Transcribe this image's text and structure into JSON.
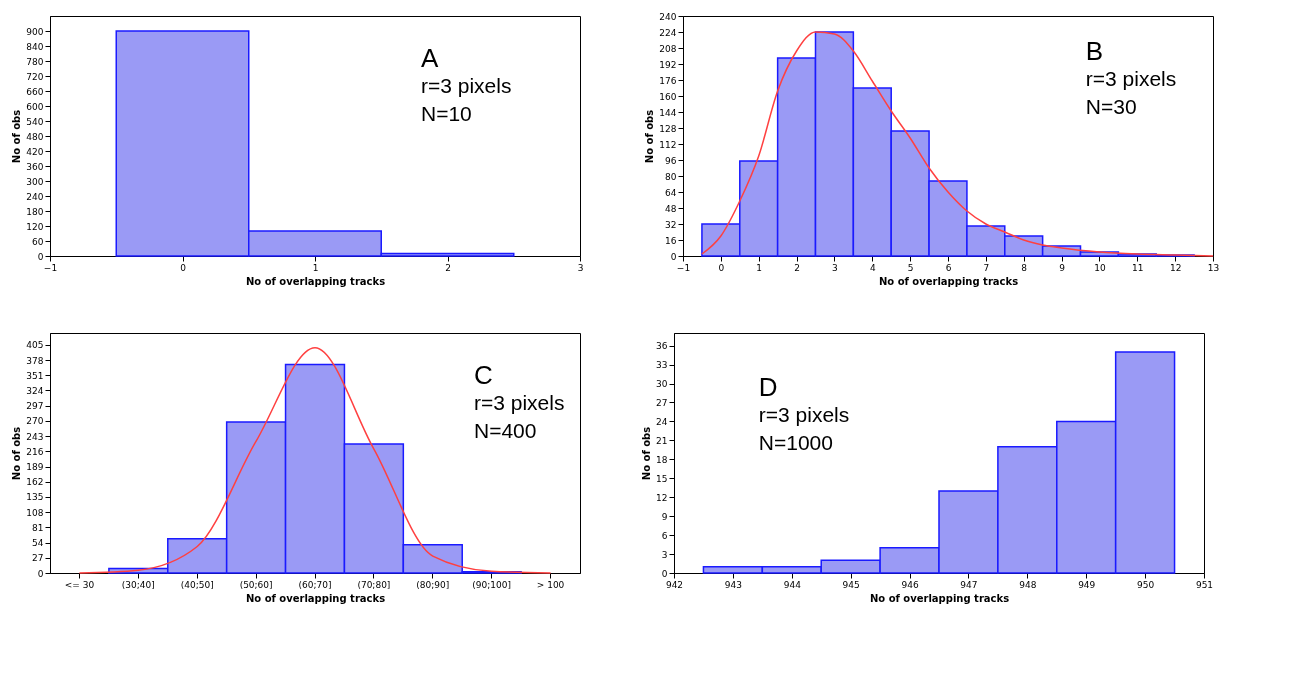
{
  "chart_data": [
    {
      "type": "histogram",
      "xlabel": "No of overlapping tracks",
      "ylabel": "No of obs",
      "bins": [
        -0.5,
        0.5,
        1.5,
        2.5
      ],
      "values": [
        900,
        100,
        10
      ],
      "color": "#9a9af5",
      "xlim": [
        -1,
        3
      ],
      "xticks": [
        -1,
        0,
        1,
        2,
        3
      ],
      "ylim": [
        0,
        960
      ],
      "yticks": [
        0,
        60,
        120,
        180,
        240,
        300,
        360,
        420,
        480,
        540,
        600,
        660,
        720,
        780,
        840,
        900
      ],
      "annotations": [
        "A",
        "r=3 pixels",
        "N=10"
      ]
    },
    {
      "type": "histogram",
      "xlabel": "No of overlapping tracks",
      "ylabel": "No of obs",
      "bins": [
        -0.5,
        0.5,
        1.5,
        2.5,
        3.5,
        4.5,
        5.5,
        6.5,
        7.5,
        8.5,
        9.5,
        10.5,
        11.5,
        12.5
      ],
      "values": [
        32,
        95,
        198,
        224,
        168,
        125,
        75,
        30,
        20,
        10,
        4,
        2,
        1
      ],
      "color": "#9a9af5",
      "xlim": [
        -1,
        13
      ],
      "xticks": [
        -1,
        0,
        1,
        2,
        3,
        4,
        5,
        6,
        7,
        8,
        9,
        10,
        11,
        12,
        13
      ],
      "ylim": [
        0,
        240
      ],
      "yticks": [
        0,
        16,
        32,
        48,
        64,
        80,
        96,
        112,
        128,
        144,
        160,
        176,
        192,
        208,
        224,
        240
      ],
      "annotations": [
        "B",
        "r=3 pixels",
        "N=30"
      ],
      "series": [
        {
          "type": "line",
          "color": "#ff4040",
          "x": [
            -0.5,
            0,
            0.5,
            1,
            1.5,
            2,
            2.5,
            3,
            3.5,
            4,
            4.5,
            5,
            5.5,
            6,
            6.5,
            7,
            7.5,
            8,
            8.5,
            9,
            10,
            11,
            12,
            13
          ],
          "values": [
            2,
            20,
            55,
            100,
            165,
            205,
            224,
            222,
            205,
            175,
            145,
            118,
            88,
            64,
            45,
            32,
            24,
            16,
            11,
            8,
            4,
            2,
            1,
            0
          ]
        }
      ]
    },
    {
      "type": "bar",
      "xlabel": "No of overlapping tracks",
      "ylabel": "No of obs",
      "categories": [
        "<= 30",
        "(30;40]",
        "(40;50]",
        "(50;60]",
        "(60;70]",
        "(70;80]",
        "(80;90]",
        "(90;100]",
        "> 100"
      ],
      "ylim": [
        0,
        426
      ],
      "yticks": [
        0,
        27,
        54,
        81,
        108,
        135,
        162,
        189,
        216,
        243,
        270,
        297,
        324,
        351,
        378,
        405
      ],
      "annotations": [
        "C",
        "r=3 pixels",
        "N=400"
      ],
      "series": [
        {
          "type": "bar",
          "color": "#9a9af5",
          "values": [
            0,
            8,
            61,
            268,
            370,
            229,
            50,
            2,
            0
          ]
        },
        {
          "type": "line",
          "color": "#ff4040",
          "values": [
            0,
            5,
            47,
            234,
            400,
            220,
            30,
            3,
            0
          ]
        }
      ]
    },
    {
      "type": "histogram",
      "xlabel": "No of overlapping tracks",
      "ylabel": "No of obs",
      "bins": [
        942.5,
        943.5,
        944.5,
        945.5,
        946.5,
        947.5,
        948.5,
        949.5,
        950.5
      ],
      "values": [
        1,
        1,
        2,
        4,
        13,
        20,
        24,
        35
      ],
      "color": "#9a9af5",
      "xlim": [
        942,
        951
      ],
      "xticks": [
        942,
        943,
        944,
        945,
        946,
        947,
        948,
        949,
        950,
        951
      ],
      "ylim": [
        0,
        38
      ],
      "yticks": [
        0,
        3,
        6,
        9,
        12,
        15,
        18,
        21,
        24,
        27,
        30,
        33,
        36
      ],
      "annotations": [
        "D",
        "r=3 pixels",
        "N=1000"
      ]
    }
  ]
}
